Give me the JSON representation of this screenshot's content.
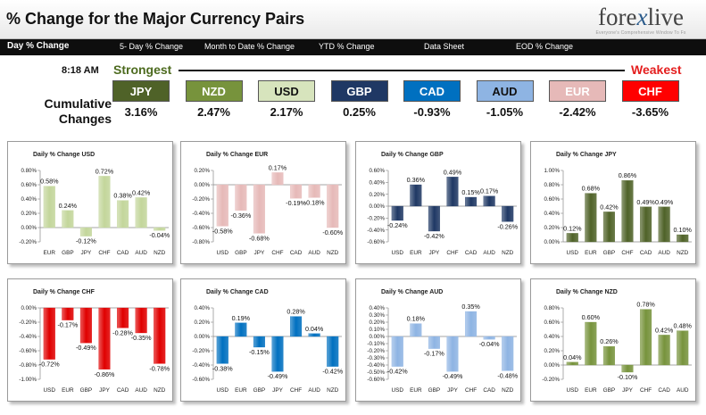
{
  "header": {
    "title": "% Change for the Major Currency Pairs"
  },
  "logo": {
    "name_a": "fore",
    "name_x": "x",
    "name_b": "live",
    "tagline": "Everyone's Comprehensive Window To Fx"
  },
  "nav": [
    "Day % Change",
    "5- Day % Change",
    "Month to Date % Change",
    "YTD % Change",
    "Data Sheet",
    "EOD % Change"
  ],
  "time": "8:18 AM",
  "strongest_label": "Strongest",
  "weakest_label": "Weakest",
  "cumulative_label_1": "Cumulative",
  "cumulative_label_2": "Changes",
  "ranking": [
    {
      "currency": "JPY",
      "value": "3.16%",
      "bg": "#4f6228",
      "fg": "#ffffff"
    },
    {
      "currency": "NZD",
      "value": "2.47%",
      "bg": "#77933c",
      "fg": "#ffffff"
    },
    {
      "currency": "USD",
      "value": "2.17%",
      "bg": "#d7e4bd",
      "fg": "#111111"
    },
    {
      "currency": "GBP",
      "value": "0.25%",
      "bg": "#1f3864",
      "fg": "#ffffff"
    },
    {
      "currency": "CAD",
      "value": "-0.93%",
      "bg": "#0070c0",
      "fg": "#ffffff"
    },
    {
      "currency": "AUD",
      "value": "-1.05%",
      "bg": "#8eb4e3",
      "fg": "#111111"
    },
    {
      "currency": "EUR",
      "value": "-2.42%",
      "bg": "#e6b9b8",
      "fg": "#ffffff"
    },
    {
      "currency": "CHF",
      "value": "-3.65%",
      "bg": "#ff0000",
      "fg": "#ffffff"
    }
  ],
  "chart_data": [
    {
      "type": "bar",
      "title": "Daily % Change USD",
      "categories": [
        "EUR",
        "GBP",
        "JPY",
        "CHF",
        "CAD",
        "AUD",
        "NZD"
      ],
      "values": [
        0.58,
        0.24,
        -0.12,
        0.72,
        0.38,
        0.42,
        -0.04
      ],
      "labels": [
        "0.58%",
        "0.24%",
        "-0.12%",
        "0.72%",
        "0.38%",
        "0.42%",
        "-0.04%"
      ],
      "ylim": [
        -0.2,
        0.8
      ],
      "ticks": [
        0.8,
        0.6,
        0.4,
        0.2,
        0.0,
        -0.2
      ],
      "tick_labels": [
        "0.80%",
        "0.60%",
        "0.40%",
        "0.20%",
        "0.00%",
        "-0.20%"
      ],
      "color": "#c3d69b"
    },
    {
      "type": "bar",
      "title": "Daily % Change EUR",
      "categories": [
        "USD",
        "GBP",
        "JPY",
        "CHF",
        "CAD",
        "AUD",
        "NZD"
      ],
      "values": [
        -0.58,
        -0.36,
        -0.68,
        0.17,
        -0.19,
        -0.18,
        -0.6
      ],
      "labels": [
        "-0.58%",
        "-0.36%",
        "-0.68%",
        "0.17%",
        "-0.19%",
        "-0.18%",
        "-0.60%"
      ],
      "ylim": [
        -0.8,
        0.2
      ],
      "ticks": [
        0.2,
        0.0,
        -0.2,
        -0.4,
        -0.6,
        -0.8
      ],
      "tick_labels": [
        "0.20%",
        "0.00%",
        "-0.20%",
        "-0.40%",
        "-0.60%",
        "-0.80%"
      ],
      "color": "#e6b9b8"
    },
    {
      "type": "bar",
      "title": "Daily % Change GBP",
      "categories": [
        "USD",
        "EUR",
        "JPY",
        "CHF",
        "CAD",
        "AUD",
        "NZD"
      ],
      "values": [
        -0.24,
        0.36,
        -0.42,
        0.49,
        0.15,
        0.17,
        -0.26
      ],
      "labels": [
        "-0.24%",
        "0.36%",
        "-0.42%",
        "0.49%",
        "0.15%",
        "0.17%",
        "-0.26%"
      ],
      "ylim": [
        -0.6,
        0.6
      ],
      "ticks": [
        0.6,
        0.4,
        0.2,
        0.0,
        -0.2,
        -0.4,
        -0.6
      ],
      "tick_labels": [
        "0.60%",
        "0.40%",
        "0.20%",
        "0.00%",
        "-0.20%",
        "-0.40%",
        "-0.60%"
      ],
      "color": "#1f3864"
    },
    {
      "type": "bar",
      "title": "Daily % Change JPY",
      "categories": [
        "USD",
        "EUR",
        "GBP",
        "CHF",
        "CAD",
        "AUD",
        "NZD"
      ],
      "values": [
        0.12,
        0.68,
        0.42,
        0.86,
        0.49,
        0.49,
        0.1
      ],
      "labels": [
        "0.12%",
        "0.68%",
        "0.42%",
        "0.86%",
        "0.49%",
        "0.49%",
        "0.10%"
      ],
      "ylim": [
        0.0,
        1.0
      ],
      "ticks": [
        1.0,
        0.8,
        0.6,
        0.4,
        0.2,
        0.0
      ],
      "tick_labels": [
        "1.00%",
        "0.80%",
        "0.60%",
        "0.40%",
        "0.20%",
        "0.00%"
      ],
      "color": "#4f6228"
    },
    {
      "type": "bar",
      "title": "Daily % Change CHF",
      "categories": [
        "USD",
        "EUR",
        "GBP",
        "JPY",
        "CAD",
        "AUD",
        "NZD"
      ],
      "values": [
        -0.72,
        -0.17,
        -0.49,
        -0.86,
        -0.28,
        -0.35,
        -0.78
      ],
      "labels": [
        "-0.72%",
        "-0.17%",
        "-0.49%",
        "-0.86%",
        "-0.28%",
        "-0.35%",
        "-0.78%"
      ],
      "ylim": [
        -1.0,
        0.0
      ],
      "ticks": [
        0.0,
        -0.2,
        -0.4,
        -0.6,
        -0.8,
        -1.0
      ],
      "tick_labels": [
        "0.00%",
        "-0.20%",
        "-0.40%",
        "-0.60%",
        "-0.80%",
        "-1.00%"
      ],
      "color": "#e00000"
    },
    {
      "type": "bar",
      "title": "Daily % Change CAD",
      "categories": [
        "USD",
        "EUR",
        "GBP",
        "JPY",
        "CHF",
        "AUD",
        "NZD"
      ],
      "values": [
        -0.38,
        0.19,
        -0.15,
        -0.49,
        0.28,
        0.04,
        -0.42
      ],
      "labels": [
        "-0.38%",
        "0.19%",
        "-0.15%",
        "-0.49%",
        "0.28%",
        "0.04%",
        "-0.42%"
      ],
      "ylim": [
        -0.6,
        0.4
      ],
      "ticks": [
        0.4,
        0.2,
        0.0,
        -0.2,
        -0.4,
        -0.6
      ],
      "tick_labels": [
        "0.40%",
        "0.20%",
        "0.00%",
        "-0.20%",
        "-0.40%",
        "-0.60%"
      ],
      "color": "#0070c0"
    },
    {
      "type": "bar",
      "title": "Daily % Change AUD",
      "categories": [
        "USD",
        "EUR",
        "GBP",
        "JPY",
        "CHF",
        "CAD",
        "NZD"
      ],
      "values": [
        -0.42,
        0.18,
        -0.17,
        -0.49,
        0.35,
        -0.04,
        -0.48
      ],
      "labels": [
        "-0.42%",
        "0.18%",
        "-0.17%",
        "-0.49%",
        "0.35%",
        "-0.04%",
        "-0.48%"
      ],
      "ylim": [
        -0.6,
        0.4
      ],
      "ticks": [
        0.4,
        0.3,
        0.2,
        0.1,
        0.0,
        -0.1,
        -0.2,
        -0.3,
        -0.4,
        -0.5,
        -0.6
      ],
      "tick_labels": [
        "0.40%",
        "0.30%",
        "0.20%",
        "0.10%",
        "0.00%",
        "-0.10%",
        "-0.20%",
        "-0.30%",
        "-0.40%",
        "-0.50%",
        "-0.60%"
      ],
      "color": "#8eb4e3"
    },
    {
      "type": "bar",
      "title": "Daily % Change NZD",
      "categories": [
        "USD",
        "EUR",
        "GBP",
        "JPY",
        "CHF",
        "CAD",
        "AUD"
      ],
      "values": [
        0.04,
        0.6,
        0.26,
        -0.1,
        0.78,
        0.42,
        0.48
      ],
      "labels": [
        "0.04%",
        "0.60%",
        "0.26%",
        "-0.10%",
        "0.78%",
        "0.42%",
        "0.48%"
      ],
      "ylim": [
        -0.2,
        0.8
      ],
      "ticks": [
        0.8,
        0.6,
        0.4,
        0.2,
        0.0,
        -0.2
      ],
      "tick_labels": [
        "0.80%",
        "0.60%",
        "0.40%",
        "0.20%",
        "0.00%",
        "-0.20%"
      ],
      "color": "#77933c"
    }
  ]
}
